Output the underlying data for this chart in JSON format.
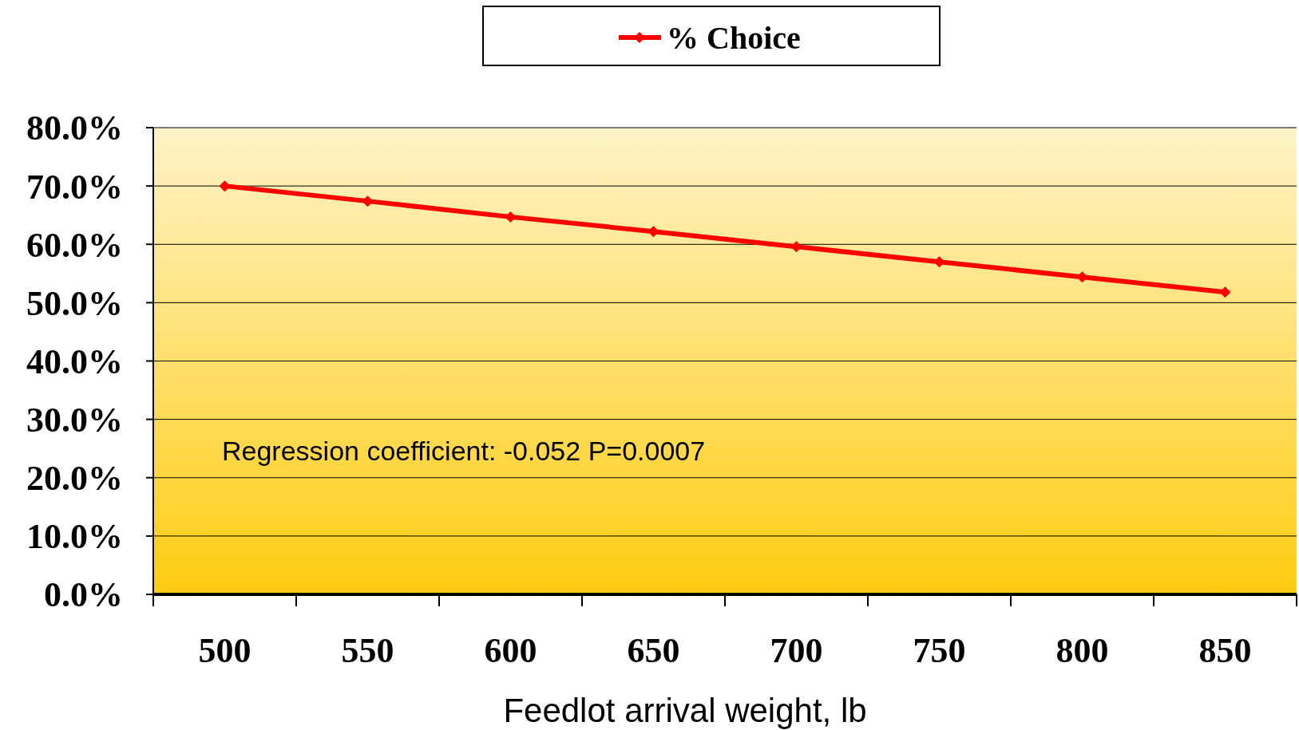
{
  "chart_data": {
    "type": "line",
    "xlabel": "Feedlot arrival weight, lb",
    "categories": [
      "500",
      "550",
      "600",
      "650",
      "700",
      "750",
      "800",
      "850"
    ],
    "series": [
      {
        "name": "% Choice",
        "color": "#ff0000",
        "values": [
          70.0,
          67.4,
          64.7,
          62.2,
          59.6,
          57.0,
          54.4,
          51.8
        ]
      }
    ],
    "ylim": [
      0,
      80
    ],
    "yticks": [
      {
        "value": 0,
        "label": "0.0%"
      },
      {
        "value": 10,
        "label": "10.0%"
      },
      {
        "value": 20,
        "label": "20.0%"
      },
      {
        "value": 30,
        "label": "30.0%"
      },
      {
        "value": 40,
        "label": "40.0%"
      },
      {
        "value": 50,
        "label": "50.0%"
      },
      {
        "value": 60,
        "label": "60.0%"
      },
      {
        "value": 70,
        "label": "70.0%"
      },
      {
        "value": 80,
        "label": "80.0%"
      }
    ],
    "grid": "y",
    "legend": "top",
    "marker": "diamond",
    "line_style": "solid",
    "annotations": [
      "Regression coefficient: -0.052   P=0.0007"
    ]
  }
}
